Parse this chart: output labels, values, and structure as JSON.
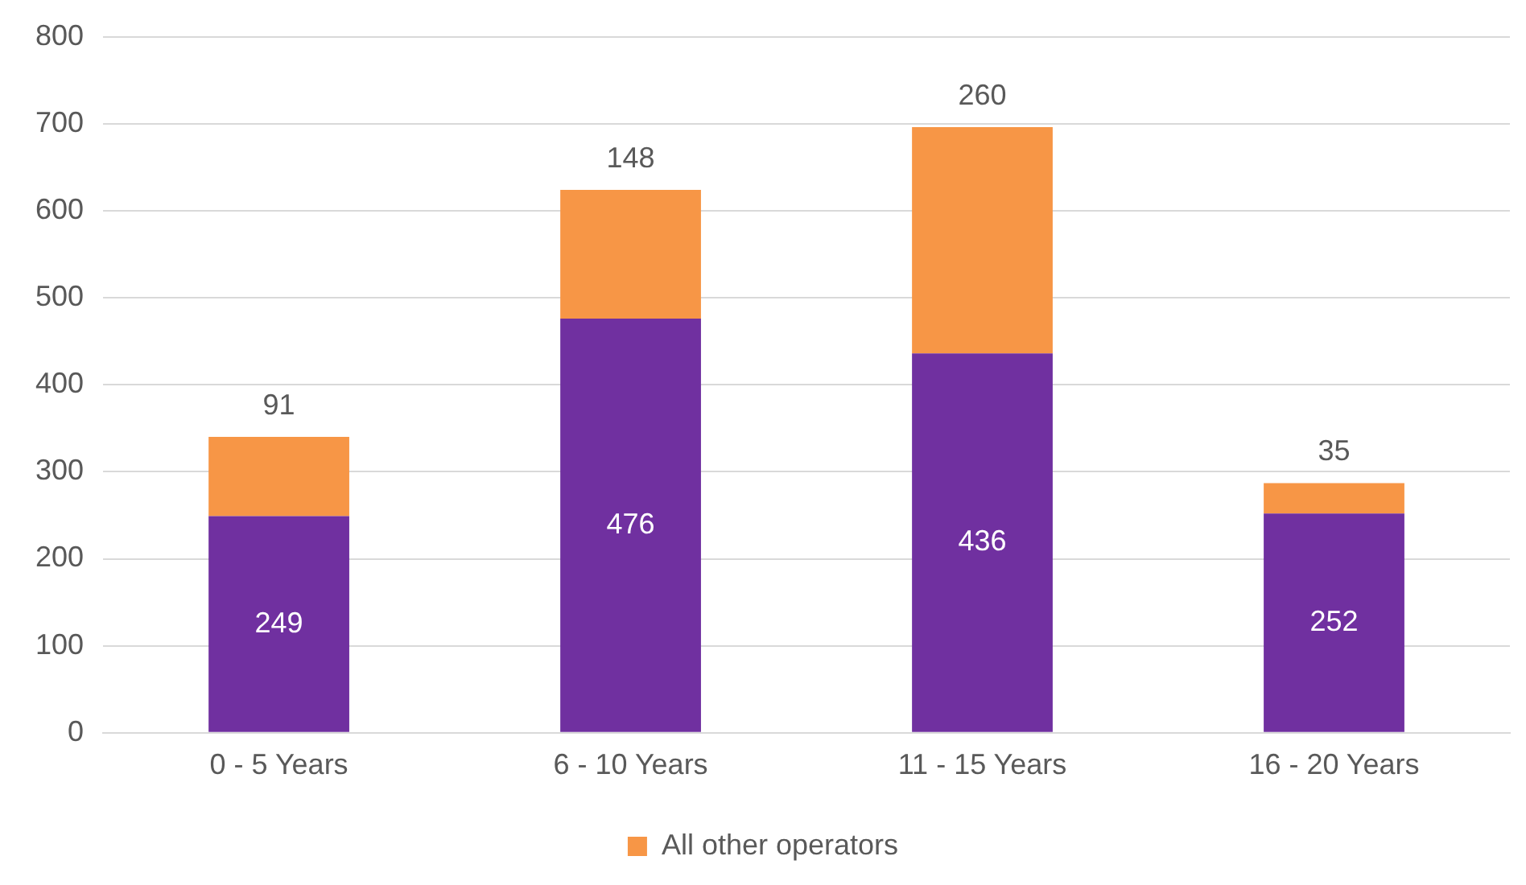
{
  "chart_data": {
    "type": "bar",
    "stacked": true,
    "categories": [
      "0 - 5 Years",
      "6 - 10 Years",
      "11 - 15 Years",
      "16 - 20 Years"
    ],
    "series": [
      {
        "color": "#7030a0",
        "values": [
          249,
          476,
          436,
          252
        ]
      },
      {
        "name": "All other operators",
        "color": "#f79646",
        "values": [
          91,
          148,
          260,
          35
        ]
      }
    ],
    "ylim": [
      0,
      800
    ],
    "yticks": [
      0,
      100,
      200,
      300,
      400,
      500,
      600,
      700,
      800
    ],
    "grid": "y",
    "legend": "bottom",
    "data_labels": true
  }
}
